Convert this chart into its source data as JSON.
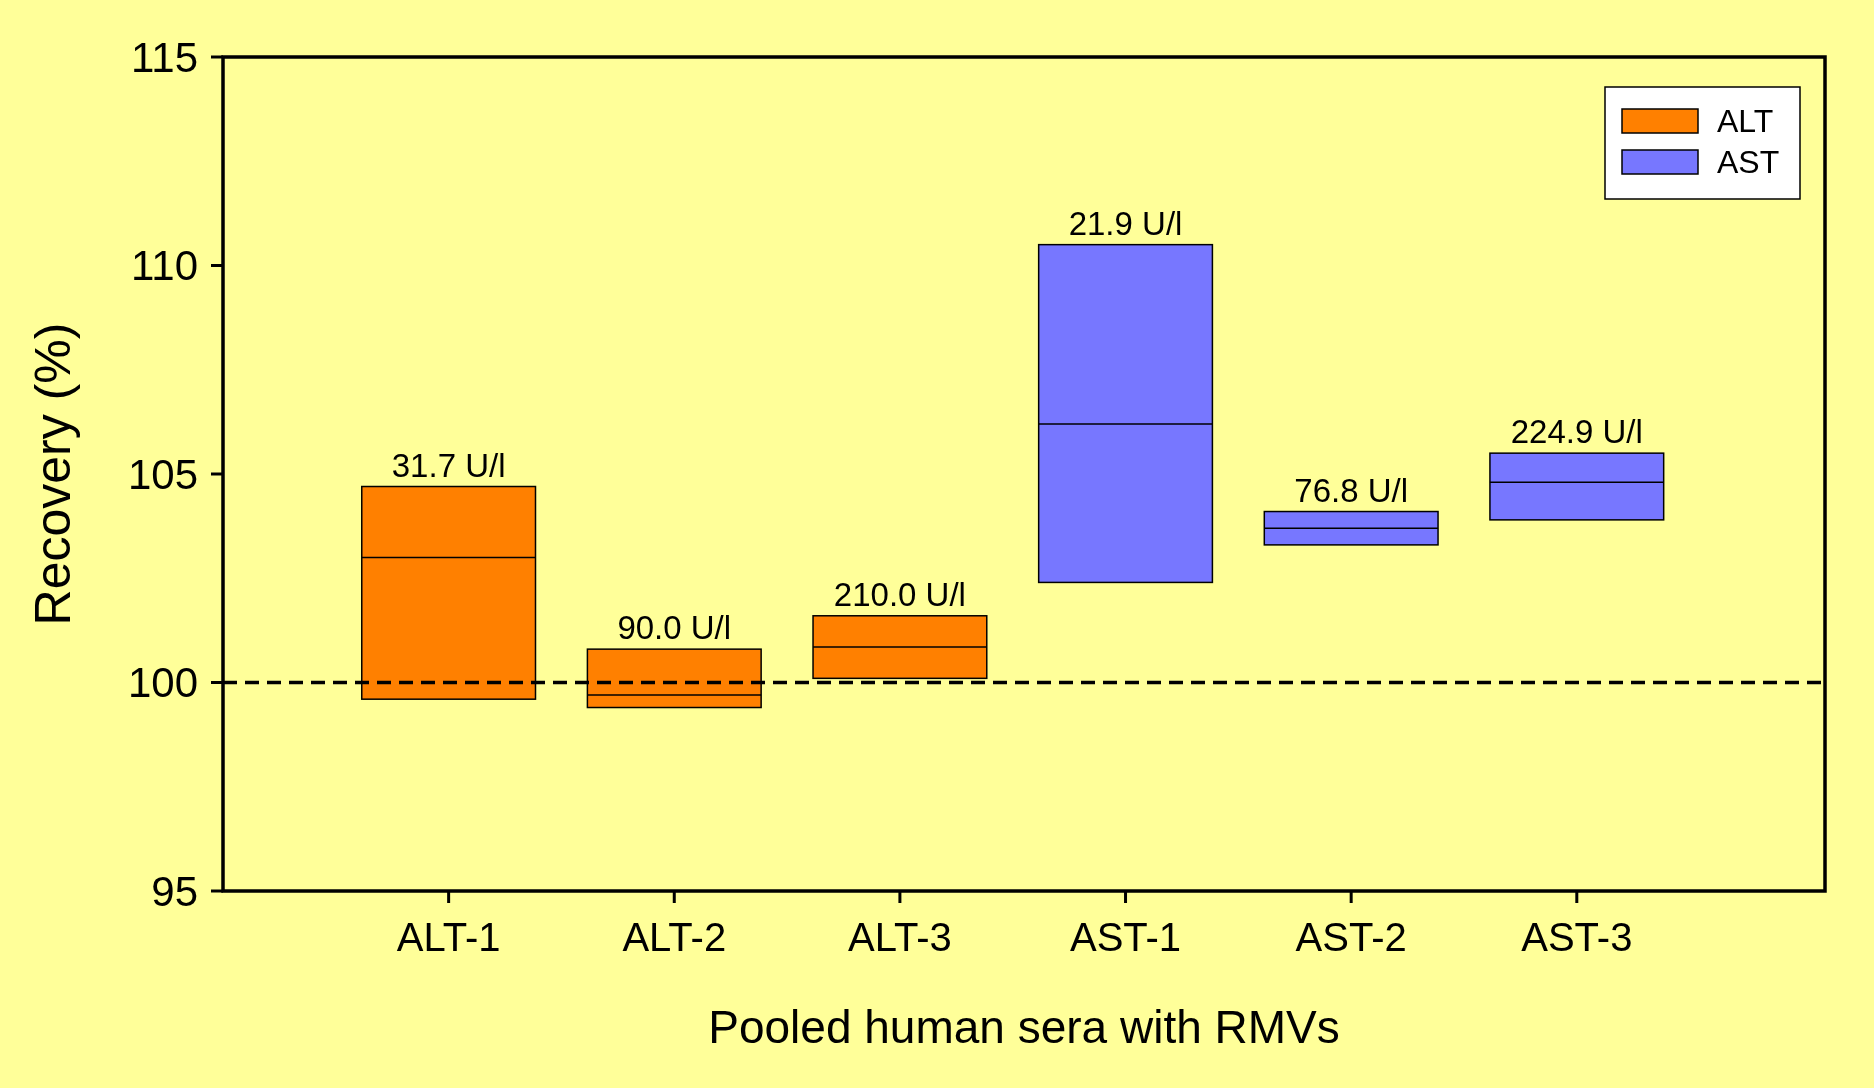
{
  "chart_data": {
    "type": "box",
    "xlabel": "Pooled human sera with RMVs",
    "ylabel": "Recovery (%)",
    "categories": [
      "ALT-1",
      "ALT-2",
      "ALT-3",
      "AST-1",
      "AST-2",
      "AST-3"
    ],
    "series": [
      {
        "name": "ALT",
        "color": "#ff8000",
        "boxes": [
          {
            "low": 99.6,
            "q1": 99.6,
            "median": 103.0,
            "q3": 104.7,
            "high": 104.7
          },
          {
            "low": 99.4,
            "q1": 99.4,
            "median": 99.7,
            "q3": 100.8,
            "high": 100.8
          },
          {
            "low": 100.1,
            "q1": 100.1,
            "median": 100.85,
            "q3": 101.6,
            "high": 101.6
          },
          null,
          null,
          null
        ]
      },
      {
        "name": "AST",
        "color": "#7777ff",
        "boxes": [
          null,
          null,
          null,
          {
            "low": 102.4,
            "q1": 102.4,
            "median": 106.2,
            "q3": 110.5,
            "high": 110.5
          },
          {
            "low": 103.3,
            "q1": 103.3,
            "median": 103.7,
            "q3": 104.1,
            "high": 104.1
          },
          {
            "low": 103.9,
            "q1": 103.9,
            "median": 104.8,
            "q3": 105.5,
            "high": 105.5
          }
        ]
      }
    ],
    "ylim": [
      95,
      115
    ],
    "yticks": [
      95,
      100,
      105,
      110,
      115
    ],
    "ref_lines": [
      {
        "axis": "y",
        "value": 100,
        "line_style": "dashed",
        "color": "#000000"
      }
    ],
    "annotations": [
      {
        "text": "31.7 U/l",
        "x": "ALT-1",
        "y": 104.7
      },
      {
        "text": "90.0 U/l",
        "x": "ALT-2",
        "y": 100.8
      },
      {
        "text": "210.0 U/l",
        "x": "ALT-3",
        "y": 101.6
      },
      {
        "text": "21.9 U/l",
        "x": "AST-1",
        "y": 110.5
      },
      {
        "text": "76.8 U/l",
        "x": "AST-2",
        "y": 104.1
      },
      {
        "text": "224.9 U/l",
        "x": "AST-3",
        "y": 105.5
      }
    ],
    "legend": "top right"
  }
}
